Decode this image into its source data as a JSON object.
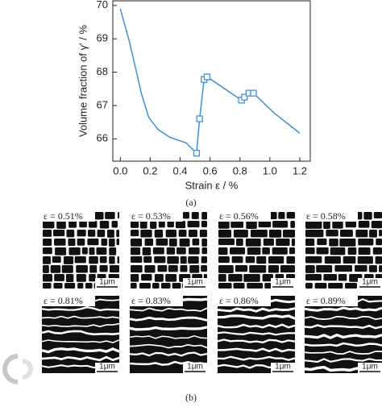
{
  "chart_data": {
    "type": "line",
    "x_label": "Strain ε / %",
    "y_label": "Volume fraction of γ' / %",
    "xlim": [
      -0.05,
      1.27
    ],
    "ylim": [
      65.33,
      70.14
    ],
    "xticks": [
      {
        "value": 0,
        "label": "0.0"
      },
      0.2,
      0.4,
      0.6,
      0.8,
      {
        "value": 1,
        "label": "1.0"
      },
      1.2
    ],
    "yticks": [
      66,
      67,
      68,
      69,
      70
    ],
    "series": [
      {
        "color": "#3f8fd8",
        "marker": "none",
        "x": [
          0,
          0.06,
          0.11,
          0.14,
          0.19,
          0.25,
          0.33,
          0.44,
          0.51,
          0.53,
          0.56,
          0.58,
          0.81,
          0.83,
          0.86,
          0.89,
          1.03,
          1.2
        ],
        "values": [
          69.9,
          68.93,
          67.97,
          67.37,
          66.65,
          66.29,
          66.05,
          65.88,
          65.57,
          66.6,
          67.78,
          67.86,
          67.16,
          67.25,
          67.37,
          67.37,
          66.77,
          66.17
        ]
      },
      {
        "color": "#3f8fd8",
        "marker": "square",
        "x": [
          0.51,
          0.53,
          0.56,
          0.58,
          0.81,
          0.83,
          0.86,
          0.89
        ],
        "values": [
          65.57,
          66.6,
          67.78,
          67.86,
          67.16,
          67.25,
          67.37,
          67.37
        ]
      }
    ]
  },
  "panel_a_label": "(a)",
  "micrographs": {
    "labels": [
      "ε = 0.51%",
      "ε = 0.53%",
      "ε = 0.56%",
      "ε = 0.58%",
      "ε = 0.81%",
      "ε = 0.83%",
      "ε = 0.86%",
      "ε = 0.89%"
    ],
    "scale_bar": "1μm"
  },
  "panel_b_label": "(b)"
}
